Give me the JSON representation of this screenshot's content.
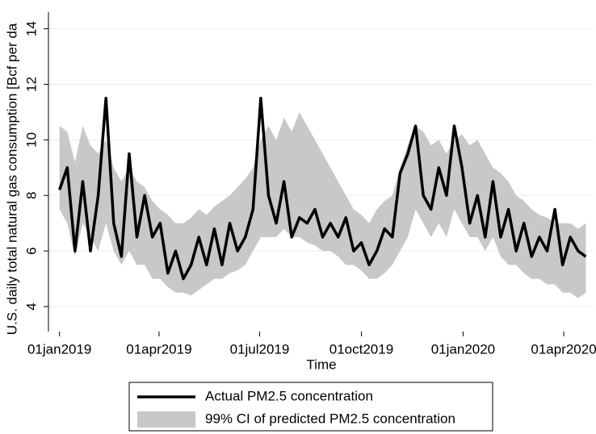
{
  "chart_data": {
    "type": "line",
    "x_label": "Time",
    "y_label": "U.S. daily total natural gas consumption [Bcf per da",
    "x": [
      "2019-01-01",
      "2019-01-08",
      "2019-01-15",
      "2019-01-22",
      "2019-01-29",
      "2019-02-05",
      "2019-02-12",
      "2019-02-19",
      "2019-02-26",
      "2019-03-05",
      "2019-03-12",
      "2019-03-19",
      "2019-03-26",
      "2019-04-02",
      "2019-04-09",
      "2019-04-16",
      "2019-04-23",
      "2019-04-30",
      "2019-05-07",
      "2019-05-14",
      "2019-05-21",
      "2019-05-28",
      "2019-06-04",
      "2019-06-11",
      "2019-06-18",
      "2019-06-25",
      "2019-07-02",
      "2019-07-09",
      "2019-07-16",
      "2019-07-23",
      "2019-07-30",
      "2019-08-06",
      "2019-08-13",
      "2019-08-20",
      "2019-08-27",
      "2019-09-03",
      "2019-09-10",
      "2019-09-17",
      "2019-09-24",
      "2019-10-01",
      "2019-10-08",
      "2019-10-15",
      "2019-10-22",
      "2019-10-29",
      "2019-11-05",
      "2019-11-12",
      "2019-11-19",
      "2019-11-26",
      "2019-12-03",
      "2019-12-10",
      "2019-12-17",
      "2019-12-24",
      "2019-12-31",
      "2020-01-07",
      "2020-01-14",
      "2020-01-21",
      "2020-01-28",
      "2020-02-04",
      "2020-02-11",
      "2020-02-18",
      "2020-02-25",
      "2020-03-03",
      "2020-03-10",
      "2020-03-17",
      "2020-03-24",
      "2020-03-31",
      "2020-04-07",
      "2020-04-14",
      "2020-04-21"
    ],
    "series": [
      {
        "name": "Actual PM2.5 concentration",
        "color": "#000000",
        "values": [
          8.2,
          9.0,
          6.0,
          8.5,
          6.0,
          8.0,
          11.5,
          7.0,
          5.8,
          9.5,
          6.5,
          8.0,
          6.5,
          7.0,
          5.2,
          6.0,
          5.0,
          5.5,
          6.5,
          5.5,
          6.8,
          5.5,
          7.0,
          6.0,
          6.5,
          7.5,
          11.5,
          8.0,
          7.0,
          8.5,
          6.5,
          7.2,
          7.0,
          7.5,
          6.5,
          7.0,
          6.5,
          7.2,
          6.0,
          6.3,
          5.5,
          6.0,
          6.8,
          6.5,
          8.8,
          9.5,
          10.5,
          8.0,
          7.5,
          9.0,
          8.0,
          10.5,
          9.0,
          7.0,
          8.0,
          6.5,
          8.5,
          6.5,
          7.5,
          6.0,
          7.0,
          5.8,
          6.5,
          6.0,
          7.5,
          5.5,
          6.5,
          6.0,
          5.8
        ]
      }
    ],
    "band": {
      "name": "99% CI of predicted PM2.5 concentration",
      "color": "#c8c8c8",
      "lower": [
        7.5,
        7.0,
        5.8,
        7.0,
        6.5,
        6.0,
        7.0,
        6.0,
        5.5,
        6.0,
        5.5,
        5.5,
        5.0,
        5.0,
        4.7,
        4.5,
        4.5,
        4.4,
        4.6,
        4.8,
        5.0,
        5.0,
        5.2,
        5.3,
        5.5,
        6.0,
        6.5,
        6.5,
        6.5,
        6.8,
        6.5,
        6.5,
        6.3,
        6.2,
        6.0,
        6.0,
        5.8,
        5.5,
        5.5,
        5.3,
        5.0,
        5.0,
        5.2,
        5.5,
        6.0,
        6.5,
        7.5,
        7.0,
        6.5,
        7.0,
        6.5,
        7.5,
        7.0,
        6.5,
        6.5,
        6.0,
        6.5,
        5.8,
        5.5,
        5.5,
        5.2,
        5.0,
        5.0,
        4.8,
        4.8,
        4.5,
        4.5,
        4.3,
        4.5
      ],
      "upper": [
        10.5,
        10.3,
        9.2,
        10.5,
        9.8,
        9.5,
        10.0,
        9.0,
        8.5,
        9.0,
        8.5,
        8.3,
        7.8,
        7.5,
        7.3,
        7.0,
        7.0,
        7.2,
        7.5,
        7.3,
        7.6,
        7.8,
        8.0,
        8.3,
        8.6,
        9.0,
        10.0,
        10.5,
        10.0,
        10.8,
        10.3,
        11.0,
        10.5,
        10.0,
        9.5,
        9.0,
        8.5,
        8.0,
        7.5,
        7.3,
        7.0,
        7.5,
        7.8,
        8.0,
        9.0,
        9.8,
        10.5,
        10.3,
        9.8,
        10.0,
        9.5,
        10.0,
        10.2,
        9.8,
        10.0,
        9.5,
        9.0,
        8.8,
        8.5,
        8.0,
        7.8,
        7.5,
        7.3,
        7.2,
        7.0,
        7.0,
        7.0,
        6.8,
        7.0
      ]
    },
    "xlim": [
      "2018-12-22",
      "2020-04-28"
    ],
    "xticks": [
      {
        "value": "2019-01-01",
        "label": "01jan2019"
      },
      {
        "value": "2019-04-01",
        "label": "01apr2019"
      },
      {
        "value": "2019-07-01",
        "label": "01jul2019"
      },
      {
        "value": "2019-10-01",
        "label": "01oct2019"
      },
      {
        "value": "2020-01-01",
        "label": "01jan2020"
      },
      {
        "value": "2020-04-01",
        "label": "01apr2020"
      }
    ],
    "ylim": [
      3.1,
      14.6
    ],
    "yticks": [
      4,
      6,
      8,
      10,
      12,
      14
    ],
    "grid": true,
    "legend": "bottom"
  }
}
